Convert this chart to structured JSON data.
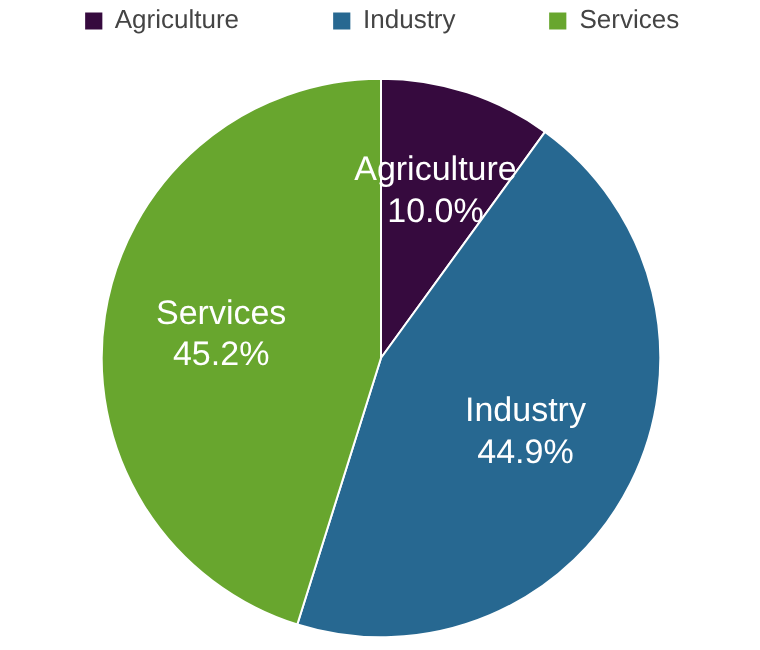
{
  "chart_data": {
    "type": "pie",
    "categories": [
      "Agriculture",
      "Industry",
      "Services"
    ],
    "values": [
      10.0,
      44.9,
      45.2
    ],
    "value_labels": [
      "10.0%",
      "44.9%",
      "45.2%"
    ],
    "colors": [
      "#360a3e",
      "#276891",
      "#68a62e"
    ],
    "legend": "top"
  }
}
